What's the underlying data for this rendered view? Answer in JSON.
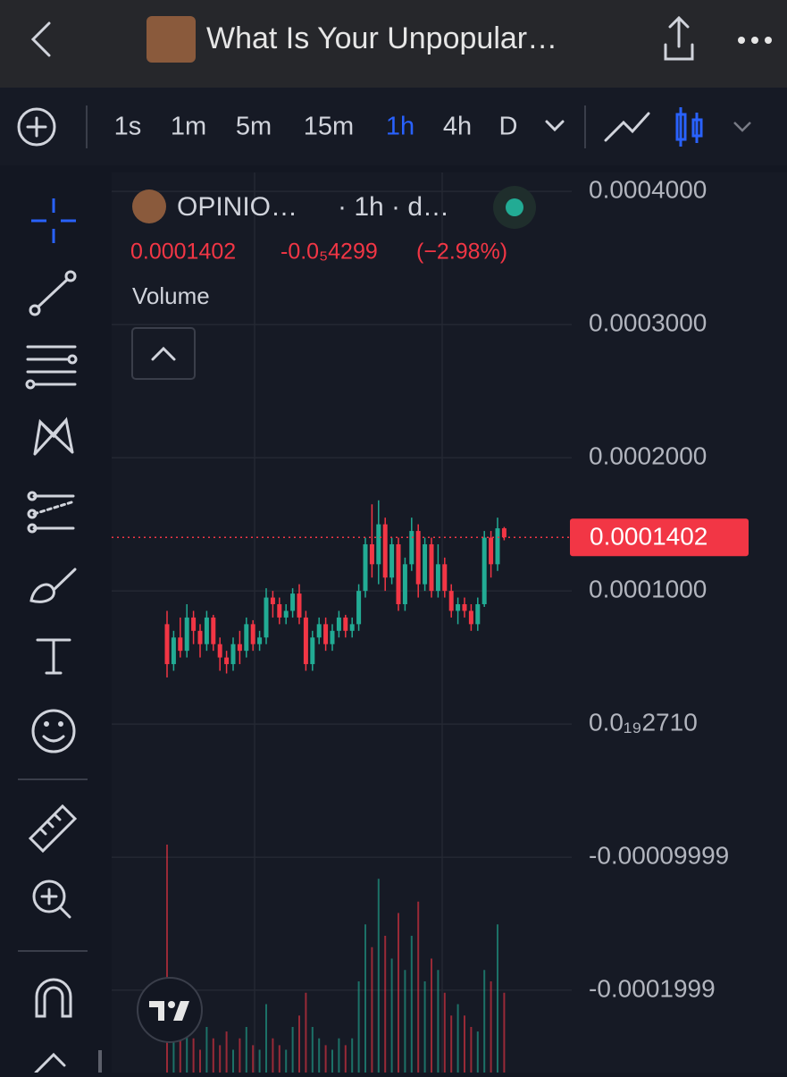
{
  "header": {
    "title": "What Is Your Unpopular…"
  },
  "toolbar": {
    "intervals": [
      "1s",
      "1m",
      "5m",
      "15m",
      "1h",
      "4h",
      "D"
    ],
    "active": "1h"
  },
  "legend": {
    "symbol": "OPINIO…",
    "details": "· 1h · d…",
    "change": "-0.0₅4299",
    "change_pct": "(−2.98%)",
    "volume_label": "Volume"
  },
  "chart_data": {
    "type": "candlestick",
    "ylim": [
      -0.0002617,
      0.0004142
    ],
    "yticks": [
      {
        "value": 0.0004,
        "label": "0.0004000"
      },
      {
        "value": 0.0003,
        "label": "0.0003000"
      },
      {
        "value": 0.0002,
        "label": "0.0002000"
      },
      {
        "value": 0.0001,
        "label": "0.0001000"
      },
      {
        "value": 2.71e-20,
        "label": "0.0₁₉2710"
      },
      -9.999e-05,
      -0.0001999
    ],
    "grid": true,
    "last_price": 0.0001402,
    "up_color": "#22ab94",
    "down_color": "#f23645",
    "ohlc": [
      [
        7.5e-05,
        8.5e-05,
        3.5e-05,
        4.5e-05
      ],
      [
        4.5e-05,
        7e-05,
        4e-05,
        6.5e-05
      ],
      [
        6.5e-05,
        8e-05,
        5e-05,
        5.5e-05
      ],
      [
        5.5e-05,
        9e-05,
        5e-05,
        8e-05
      ],
      [
        8e-05,
        8.5e-05,
        6e-05,
        7e-05
      ],
      [
        7e-05,
        7.5e-05,
        5e-05,
        6e-05
      ],
      [
        6e-05,
        8.5e-05,
        5.5e-05,
        8e-05
      ],
      [
        8e-05,
        8.2e-05,
        5.5e-05,
        6e-05
      ],
      [
        6e-05,
        6.5e-05,
        4e-05,
        5e-05
      ],
      [
        5e-05,
        5.5e-05,
        3.8e-05,
        4.5e-05
      ],
      [
        4.5e-05,
        6.5e-05,
        4e-05,
        6e-05
      ],
      [
        6e-05,
        7e-05,
        4.5e-05,
        5.5e-05
      ],
      [
        5.5e-05,
        8e-05,
        5e-05,
        7.5e-05
      ],
      [
        7.5e-05,
        7.8e-05,
        5.5e-05,
        6e-05
      ],
      [
        6e-05,
        7e-05,
        5.5e-05,
        6.5e-05
      ],
      [
        6.5e-05,
        0.000102,
        6e-05,
        9.5e-05
      ],
      [
        9.5e-05,
        0.0001,
        8e-05,
        9e-05
      ],
      [
        9e-05,
        9.5e-05,
        7.5e-05,
        8e-05
      ],
      [
        8e-05,
        9e-05,
        7.5e-05,
        8.5e-05
      ],
      [
        8.5e-05,
        0.000102,
        8e-05,
        9.8e-05
      ],
      [
        9.8e-05,
        0.000105,
        7.5e-05,
        8e-05
      ],
      [
        8e-05,
        8.5e-05,
        4e-05,
        4.5e-05
      ],
      [
        4.5e-05,
        7e-05,
        4e-05,
        6.5e-05
      ],
      [
        6.5e-05,
        8e-05,
        6e-05,
        7.5e-05
      ],
      [
        7.5e-05,
        8e-05,
        5.5e-05,
        6e-05
      ],
      [
        6e-05,
        7.5e-05,
        5.5e-05,
        7e-05
      ],
      [
        7e-05,
        8.5e-05,
        6.5e-05,
        8e-05
      ],
      [
        8e-05,
        8.2e-05,
        6.5e-05,
        7e-05
      ],
      [
        7e-05,
        8e-05,
        6.5e-05,
        7.5e-05
      ],
      [
        7.5e-05,
        0.000105,
        7e-05,
        0.0001
      ],
      [
        0.0001,
        0.00014,
        9.5e-05,
        0.000135
      ],
      [
        0.000135,
        0.000165,
        0.00011,
        0.00012
      ],
      [
        0.00012,
        0.000168,
        0.000105,
        0.00015
      ],
      [
        0.00015,
        0.000155,
        0.0001,
        0.00011
      ],
      [
        0.00011,
        0.00014,
        0.000105,
        0.000135
      ],
      [
        0.000135,
        0.00014,
        8.5e-05,
        9e-05
      ],
      [
        9e-05,
        0.000125,
        8.5e-05,
        0.00012
      ],
      [
        0.00012,
        0.000155,
        0.000115,
        0.000145
      ],
      [
        0.000145,
        0.00015,
        9.5e-05,
        0.000105
      ],
      [
        0.000105,
        0.00014,
        0.0001,
        0.000135
      ],
      [
        0.000135,
        0.00014,
        9.5e-05,
        0.0001
      ],
      [
        0.0001,
        0.000135,
        9.5e-05,
        0.00012
      ],
      [
        0.00012,
        0.000125,
        9.5e-05,
        0.0001
      ],
      [
        0.0001,
        0.000105,
        8e-05,
        8.5e-05
      ],
      [
        8.5e-05,
        9.5e-05,
        7.5e-05,
        9e-05
      ],
      [
        9e-05,
        9.5e-05,
        8e-05,
        8.5e-05
      ],
      [
        8.5e-05,
        9e-05,
        7e-05,
        7.5e-05
      ],
      [
        7.5e-05,
        9.5e-05,
        7e-05,
        9e-05
      ],
      [
        9e-05,
        0.000145,
        8.8e-05,
        0.00014
      ],
      [
        0.00014,
        0.000145,
        0.00011,
        0.00012
      ],
      [
        0.00012,
        0.000155,
        0.000115,
        0.000147
      ],
      [
        0.000147,
        0.000148,
        0.000138,
        0.0001402
      ]
    ],
    "volume": [
      100,
      20,
      15,
      25,
      15,
      10,
      20,
      15,
      12,
      18,
      10,
      15,
      20,
      12,
      10,
      30,
      15,
      12,
      10,
      20,
      25,
      35,
      20,
      15,
      12,
      10,
      15,
      12,
      15,
      40,
      65,
      55,
      85,
      60,
      50,
      70,
      45,
      60,
      75,
      40,
      50,
      45,
      35,
      25,
      30,
      25,
      20,
      18,
      45,
      40,
      65,
      35
    ]
  }
}
